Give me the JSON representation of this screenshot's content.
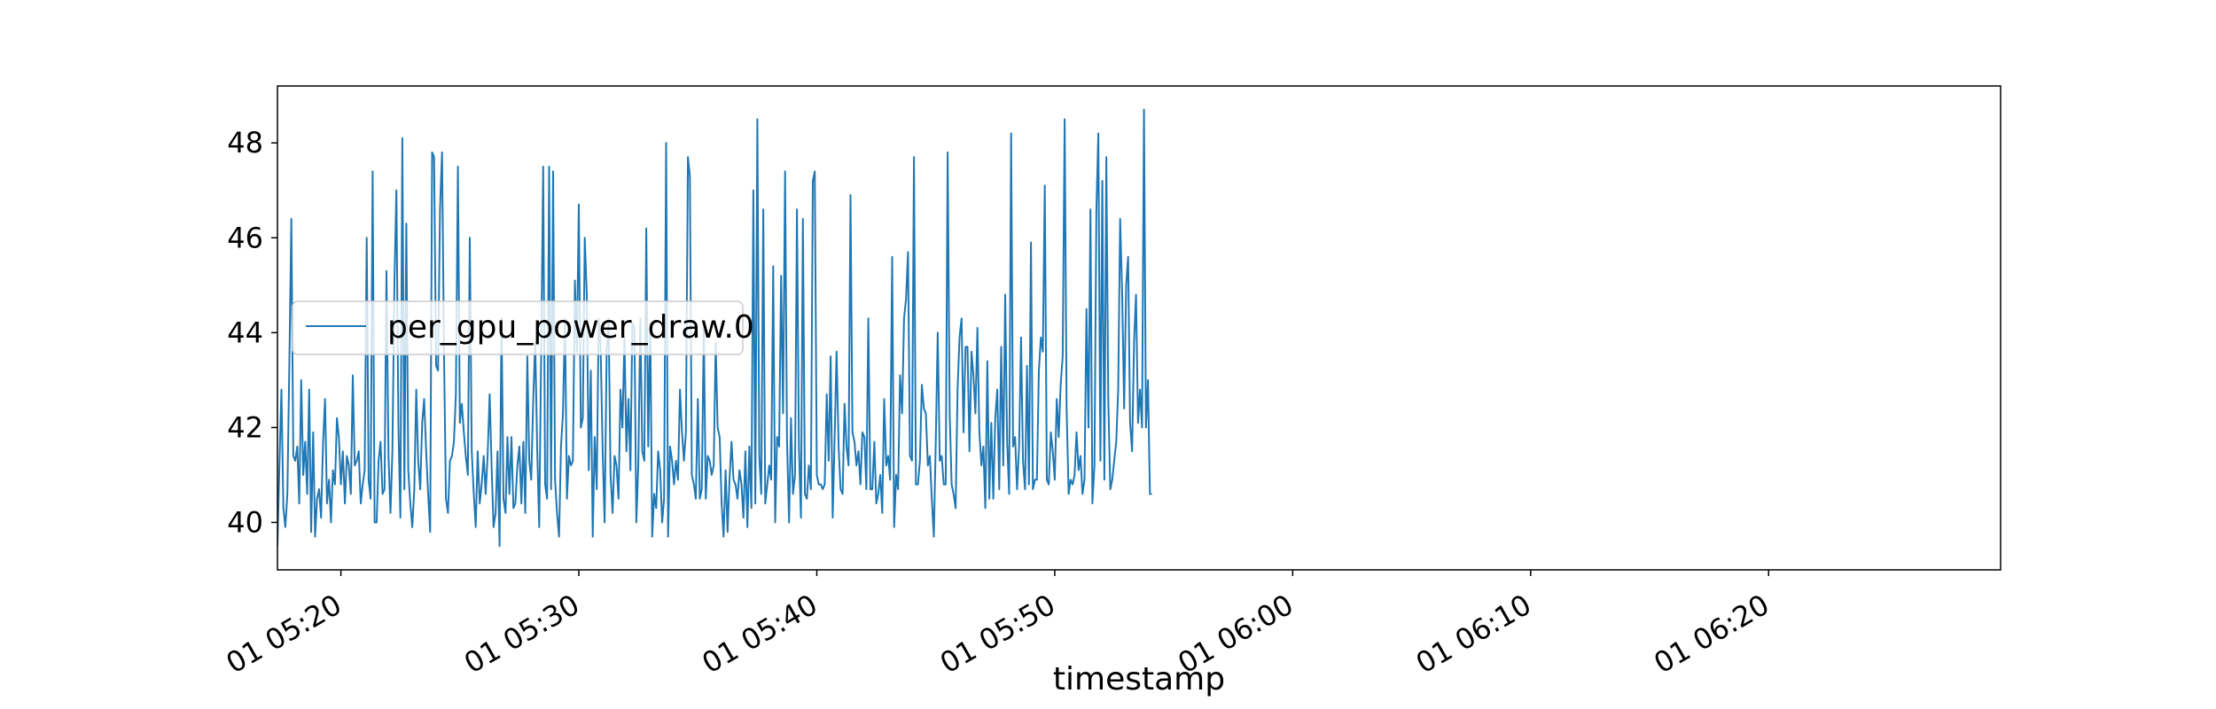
{
  "chart_data": {
    "type": "line",
    "title": "",
    "xlabel": "timestamp",
    "ylabel": "",
    "xlim": [
      "2000-01-01T05:17:20",
      "2000-01-01T06:29:45"
    ],
    "ylim": [
      39.0,
      49.2
    ],
    "x_tick_labels": [
      "01 05:20",
      "01 05:30",
      "01 05:40",
      "01 05:50",
      "01 06:00",
      "01 06:10",
      "01 06:20"
    ],
    "y_ticks": [
      40,
      42,
      44,
      46,
      48
    ],
    "y_tick_labels": [
      "40",
      "42",
      "44",
      "46",
      "48"
    ],
    "grid": false,
    "legend": {
      "position": "center-left"
    },
    "line_color": "#1f77b4",
    "sampling_interval_seconds": 5,
    "series": [
      {
        "name": "per_gpu_power_draw.0",
        "values": [
          39.5,
          41.2,
          42.8,
          40.3,
          39.9,
          40.6,
          43.3,
          46.4,
          41.4,
          41.3,
          41.6,
          40.4,
          43.0,
          41.0,
          41.7,
          40.6,
          42.8,
          39.8,
          41.9,
          39.7,
          40.5,
          40.7,
          40.1,
          41.7,
          42.6,
          40.4,
          40.9,
          40.0,
          41.1,
          40.8,
          42.2,
          41.8,
          40.8,
          41.5,
          40.4,
          41.4,
          41.2,
          40.6,
          43.1,
          41.2,
          41.3,
          41.5,
          40.4,
          40.8,
          41.1,
          46.0,
          40.9,
          40.5,
          47.4,
          40.0,
          40.0,
          41.3,
          41.7,
          40.6,
          40.7,
          45.3,
          41.4,
          40.2,
          41.5,
          45.1,
          47.0,
          42.0,
          40.1,
          48.1,
          40.7,
          46.3,
          41.1,
          40.4,
          39.9,
          40.7,
          42.8,
          41.3,
          40.7,
          42.1,
          42.6,
          41.5,
          40.6,
          39.8,
          47.8,
          47.7,
          43.3,
          43.2,
          46.6,
          47.8,
          43.6,
          40.5,
          40.2,
          41.3,
          41.4,
          41.7,
          42.7,
          47.5,
          42.1,
          42.5,
          41.9,
          41.4,
          41.0,
          46.0,
          41.5,
          40.6,
          39.9,
          41.5,
          40.4,
          40.8,
          41.4,
          40.6,
          41.4,
          42.7,
          41.2,
          39.9,
          40.2,
          41.5,
          39.5,
          44.3,
          40.5,
          40.2,
          41.8,
          40.6,
          41.8,
          40.3,
          40.4,
          41.2,
          41.6,
          40.4,
          41.7,
          40.2,
          43.5,
          41.3,
          40.9,
          42.6,
          43.8,
          41.5,
          39.9,
          43.5,
          47.5,
          40.8,
          40.5,
          47.5,
          40.7,
          47.4,
          40.9,
          40.2,
          39.7,
          41.6,
          42.3,
          44.3,
          40.5,
          41.4,
          41.2,
          41.3,
          45.1,
          43.6,
          46.7,
          42.0,
          42.2,
          46.0,
          44.8,
          41.1,
          43.2,
          39.7,
          41.8,
          40.7,
          44.3,
          43.7,
          41.5,
          40.0,
          43.6,
          44.3,
          41.0,
          40.2,
          41.4,
          41.2,
          40.5,
          42.8,
          42.0,
          43.9,
          41.5,
          42.6,
          41.1,
          44.2,
          44.1,
          40.0,
          41.2,
          44.3,
          41.5,
          41.3,
          46.2,
          41.6,
          44.2,
          39.7,
          40.6,
          40.3,
          41.5,
          41.1,
          40.0,
          40.5,
          48.0,
          39.7,
          41.6,
          41.3,
          40.8,
          41.3,
          40.9,
          42.8,
          41.9,
          41.3,
          41.9,
          47.7,
          47.3,
          41.0,
          40.8,
          40.5,
          42.6,
          40.5,
          40.7,
          44.1,
          40.5,
          41.4,
          41.3,
          41.0,
          41.2,
          43.8,
          42.0,
          41.8,
          40.4,
          39.7,
          41.1,
          39.8,
          40.9,
          41.7,
          40.9,
          40.8,
          40.5,
          41.1,
          40.8,
          40.1,
          41.5,
          39.9,
          41.6,
          40.3,
          47.0,
          40.4,
          48.5,
          41.4,
          40.6,
          46.6,
          40.4,
          40.8,
          41.2,
          40.9,
          45.4,
          40.0,
          41.8,
          41.6,
          45.2,
          42.3,
          47.4,
          41.7,
          40.0,
          42.2,
          40.6,
          41.0,
          46.6,
          41.6,
          40.1,
          46.4,
          40.6,
          40.5,
          41.2,
          40.7,
          47.2,
          47.4,
          41.0,
          40.8,
          40.8,
          40.7,
          40.8,
          42.7,
          41.3,
          43.5,
          40.1,
          41.8,
          43.6,
          41.6,
          40.7,
          40.6,
          42.5,
          41.6,
          41.2,
          46.9,
          41.9,
          41.7,
          41.2,
          41.5,
          40.8,
          41.9,
          41.8,
          40.7,
          44.3,
          40.7,
          40.7,
          41.7,
          40.4,
          40.6,
          41.0,
          40.2,
          42.6,
          41.2,
          41.4,
          40.9,
          45.6,
          39.9,
          41.0,
          40.7,
          43.1,
          42.3,
          44.3,
          44.7,
          45.7,
          41.4,
          41.3,
          47.7,
          40.8,
          40.8,
          41.3,
          42.9,
          42.4,
          42.3,
          41.2,
          41.4,
          40.5,
          39.7,
          41.7,
          44.0,
          41.3,
          41.4,
          40.8,
          40.8,
          47.8,
          42.3,
          40.8,
          40.6,
          40.3,
          42.8,
          43.9,
          44.3,
          41.9,
          43.7,
          43.7,
          41.5,
          43.6,
          43.1,
          42.3,
          44.1,
          41.9,
          41.2,
          41.6,
          40.3,
          43.4,
          40.5,
          42.1,
          40.5,
          42.2,
          42.8,
          40.7,
          43.7,
          41.2,
          44.8,
          41.7,
          40.6,
          48.2,
          41.6,
          41.8,
          40.7,
          41.6,
          43.9,
          41.3,
          40.7,
          43.3,
          40.8,
          45.9,
          40.7,
          40.9,
          40.9,
          43.2,
          43.9,
          43.6,
          47.1,
          40.9,
          40.8,
          41.9,
          41.5,
          40.9,
          42.6,
          41.8,
          42.9,
          43.5,
          48.5,
          42.4,
          40.6,
          40.9,
          40.8,
          41.0,
          41.9,
          41.1,
          41.4,
          40.6,
          40.9,
          44.5,
          42.0,
          46.6,
          40.4,
          41.2,
          46.6,
          48.2,
          41.3,
          47.2,
          40.9,
          47.7,
          42.6,
          40.7,
          40.9,
          41.3,
          41.7,
          42.8,
          46.4,
          44.8,
          42.4,
          45.0,
          45.6,
          42.1,
          41.5,
          43.8,
          44.8,
          42.1,
          42.8,
          42.0,
          48.7,
          42.0,
          43.0,
          40.6,
          40.6
        ]
      }
    ]
  }
}
